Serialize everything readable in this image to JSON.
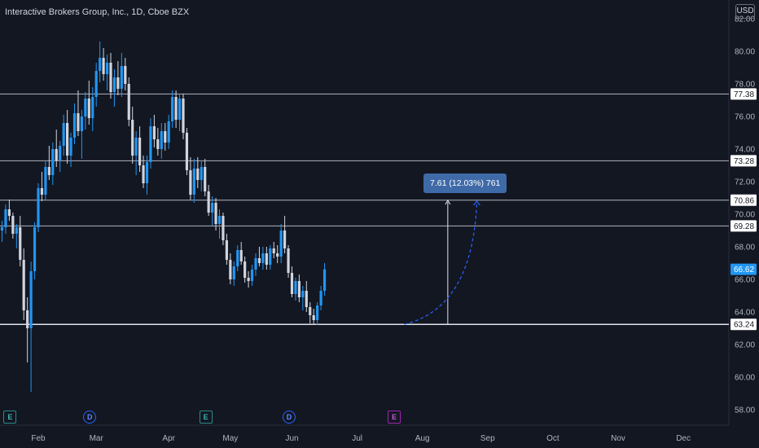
{
  "header": {
    "title": "Interactive Brokers Group, Inc., 1D, Cboe BZX",
    "currency": "USD"
  },
  "colors": {
    "background": "#131722",
    "up": "#2196f3",
    "down": "#d1d4dc",
    "level_line": "#b2b5be",
    "grid_text": "#b2b5be",
    "last_price_bg": "#2196f3",
    "measure_bg": "#3f6aa8",
    "measure_arrow": "#2962ff"
  },
  "measure_label": "7.61 (12.03%) 761",
  "events": [
    {
      "type": "earnings",
      "label": "E",
      "x_index": 2
    },
    {
      "type": "dividend",
      "label": "D",
      "x_index": 24
    },
    {
      "type": "earnings",
      "label": "E",
      "x_index": 56
    },
    {
      "type": "dividend",
      "label": "D",
      "x_index": 79
    },
    {
      "type": "earnings-upcoming",
      "label": "E",
      "x_index": 108
    }
  ],
  "chart_data": {
    "type": "candlestick",
    "title": "Interactive Brokers Group, Inc., 1D, Cboe BZX",
    "y_ticks": [
      "58.00",
      "60.00",
      "62.00",
      "64.00",
      "66.00",
      "68.00",
      "70.00",
      "72.00",
      "74.00",
      "76.00",
      "78.00",
      "80.00",
      "82.00"
    ],
    "ylim": [
      57.0,
      83.0
    ],
    "x_tick_labels": [
      "Feb",
      "Mar",
      "Apr",
      "May",
      "Jun",
      "Jul",
      "Aug",
      "Sep",
      "Oct",
      "Nov",
      "Dec"
    ],
    "x_tick_index": [
      10,
      26,
      46,
      63,
      80,
      98,
      116,
      134,
      152,
      170,
      188
    ],
    "horizontal_levels": [
      {
        "value": 77.38,
        "label": "77.38"
      },
      {
        "value": 73.28,
        "label": "73.28"
      },
      {
        "value": 70.86,
        "label": "70.86"
      },
      {
        "value": 69.28,
        "label": "69.28"
      },
      {
        "value": 63.24,
        "label": "63.24"
      }
    ],
    "last_price": {
      "value": 66.62,
      "label": "66.62"
    },
    "measure": {
      "from": 63.24,
      "to": 70.85,
      "change": 7.61,
      "percent": 12.03,
      "bars": 761,
      "x_index": 123
    },
    "projection_start_index": 111,
    "projection_end_index": 131,
    "candles": [
      [
        69.0,
        69.6,
        68.3,
        69.2
      ],
      [
        69.2,
        70.6,
        68.8,
        70.3
      ],
      [
        70.3,
        70.9,
        69.6,
        69.9
      ],
      [
        69.9,
        70.1,
        68.5,
        68.8
      ],
      [
        68.8,
        69.4,
        67.9,
        69.2
      ],
      [
        69.2,
        69.9,
        66.8,
        67.2
      ],
      [
        67.2,
        67.9,
        63.5,
        64.1
      ],
      [
        64.1,
        64.9,
        60.9,
        63.0
      ],
      [
        63.0,
        67.1,
        59.1,
        66.5
      ],
      [
        66.5,
        69.5,
        66.0,
        69.2
      ],
      [
        69.2,
        71.9,
        68.9,
        71.6
      ],
      [
        71.6,
        72.6,
        70.8,
        71.2
      ],
      [
        71.2,
        73.3,
        70.9,
        72.9
      ],
      [
        72.9,
        74.2,
        72.1,
        72.4
      ],
      [
        72.4,
        74.4,
        71.8,
        74.0
      ],
      [
        74.0,
        75.2,
        72.9,
        73.3
      ],
      [
        73.3,
        74.5,
        72.6,
        74.2
      ],
      [
        74.2,
        76.1,
        73.6,
        75.6
      ],
      [
        75.6,
        76.4,
        73.1,
        73.6
      ],
      [
        73.6,
        75.0,
        72.9,
        74.7
      ],
      [
        74.7,
        76.8,
        74.3,
        76.2
      ],
      [
        76.2,
        77.6,
        74.8,
        75.1
      ],
      [
        75.1,
        76.4,
        73.4,
        76.0
      ],
      [
        76.0,
        77.5,
        75.2,
        77.1
      ],
      [
        77.1,
        78.2,
        75.5,
        75.9
      ],
      [
        75.9,
        77.8,
        75.1,
        77.2
      ],
      [
        77.2,
        79.3,
        76.6,
        78.8
      ],
      [
        78.8,
        80.6,
        78.1,
        79.6
      ],
      [
        79.6,
        80.2,
        78.2,
        78.6
      ],
      [
        78.6,
        79.8,
        77.6,
        79.3
      ],
      [
        79.3,
        79.9,
        77.1,
        77.5
      ],
      [
        77.5,
        78.9,
        76.6,
        78.4
      ],
      [
        78.4,
        79.4,
        77.3,
        77.7
      ],
      [
        77.7,
        79.9,
        77.2,
        79.1
      ],
      [
        79.1,
        79.6,
        77.6,
        78.0
      ],
      [
        78.0,
        78.4,
        75.4,
        75.8
      ],
      [
        75.8,
        76.6,
        73.1,
        73.6
      ],
      [
        73.6,
        75.1,
        72.4,
        74.7
      ],
      [
        74.7,
        75.4,
        72.6,
        73.0
      ],
      [
        73.0,
        73.6,
        71.6,
        71.9
      ],
      [
        71.9,
        73.6,
        71.2,
        73.2
      ],
      [
        73.2,
        75.9,
        72.8,
        75.4
      ],
      [
        75.4,
        76.1,
        74.1,
        74.6
      ],
      [
        74.6,
        75.3,
        73.6,
        74.0
      ],
      [
        74.0,
        75.6,
        73.4,
        75.1
      ],
      [
        75.1,
        75.6,
        73.9,
        74.4
      ],
      [
        74.4,
        76.1,
        74.0,
        75.7
      ],
      [
        75.7,
        77.6,
        75.3,
        77.2
      ],
      [
        77.2,
        77.6,
        75.3,
        75.8
      ],
      [
        75.8,
        77.4,
        75.1,
        77.1
      ],
      [
        77.1,
        77.4,
        74.6,
        75.0
      ],
      [
        75.0,
        75.3,
        72.4,
        72.7
      ],
      [
        72.7,
        73.5,
        70.9,
        71.2
      ],
      [
        71.2,
        73.4,
        70.7,
        72.8
      ],
      [
        72.8,
        73.5,
        71.6,
        72.1
      ],
      [
        72.1,
        73.3,
        71.4,
        72.9
      ],
      [
        72.9,
        73.4,
        71.1,
        71.4
      ],
      [
        71.4,
        71.8,
        69.9,
        70.1
      ],
      [
        70.1,
        71.1,
        69.3,
        70.7
      ],
      [
        70.7,
        71.0,
        69.0,
        69.4
      ],
      [
        69.4,
        70.3,
        68.5,
        69.9
      ],
      [
        69.9,
        70.1,
        68.1,
        68.4
      ],
      [
        68.4,
        68.8,
        66.9,
        67.2
      ],
      [
        67.2,
        67.6,
        65.7,
        66.0
      ],
      [
        66.0,
        67.1,
        65.6,
        66.8
      ],
      [
        66.8,
        68.1,
        66.5,
        67.8
      ],
      [
        67.8,
        68.3,
        66.9,
        67.1
      ],
      [
        67.1,
        67.4,
        65.8,
        66.1
      ],
      [
        66.1,
        66.5,
        65.5,
        65.9
      ],
      [
        65.9,
        66.9,
        65.6,
        66.6
      ],
      [
        66.6,
        67.6,
        66.2,
        67.3
      ],
      [
        67.3,
        68.0,
        66.8,
        67.0
      ],
      [
        67.0,
        68.0,
        66.6,
        67.6
      ],
      [
        67.6,
        68.0,
        66.6,
        66.9
      ],
      [
        66.9,
        68.1,
        66.6,
        67.9
      ],
      [
        67.9,
        68.3,
        67.3,
        67.6
      ],
      [
        67.6,
        68.1,
        67.0,
        67.4
      ],
      [
        67.4,
        69.4,
        67.0,
        69.0
      ],
      [
        69.0,
        69.9,
        67.6,
        67.9
      ],
      [
        67.9,
        68.1,
        66.1,
        66.4
      ],
      [
        66.4,
        66.8,
        64.9,
        65.1
      ],
      [
        65.1,
        66.1,
        64.7,
        65.9
      ],
      [
        65.9,
        66.3,
        64.6,
        64.9
      ],
      [
        64.9,
        65.6,
        64.1,
        65.3
      ],
      [
        65.3,
        65.9,
        64.0,
        64.3
      ],
      [
        64.3,
        64.6,
        63.3,
        63.8
      ],
      [
        63.8,
        64.2,
        63.2,
        63.5
      ],
      [
        63.5,
        64.6,
        63.2,
        64.4
      ],
      [
        64.4,
        65.6,
        64.1,
        65.3
      ],
      [
        65.3,
        67.0,
        65.0,
        66.62
      ]
    ],
    "candle_x_index_start": 0
  }
}
